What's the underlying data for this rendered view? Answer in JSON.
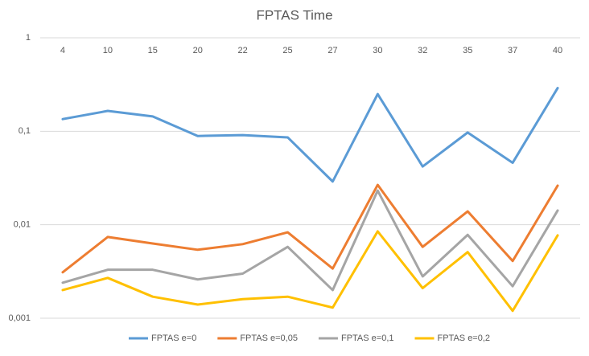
{
  "chart_data": {
    "type": "line",
    "title": "FPTAS Time",
    "categories": [
      "4",
      "10",
      "15",
      "20",
      "22",
      "25",
      "27",
      "30",
      "32",
      "35",
      "37",
      "40"
    ],
    "series": [
      {
        "name": "FPTAS e=0",
        "color": "#5b9bd5",
        "values": [
          0.135,
          0.165,
          0.144,
          0.089,
          0.091,
          0.086,
          0.029,
          0.25,
          0.042,
          0.097,
          0.046,
          0.29
        ]
      },
      {
        "name": "FPTAS e=0,05",
        "color": "#ed7d31",
        "values": [
          0.0031,
          0.0074,
          0.0063,
          0.0054,
          0.0062,
          0.0083,
          0.0034,
          0.0267,
          0.0058,
          0.0139,
          0.0041,
          0.0262
        ]
      },
      {
        "name": "FPTAS e=0,1",
        "color": "#a5a5a5",
        "values": [
          0.0024,
          0.0033,
          0.0033,
          0.0026,
          0.003,
          0.0058,
          0.002,
          0.0232,
          0.0028,
          0.0078,
          0.0022,
          0.0142
        ]
      },
      {
        "name": "FPTAS e=0,2",
        "color": "#ffc000",
        "values": [
          0.002,
          0.0027,
          0.0017,
          0.0014,
          0.0016,
          0.0017,
          0.0013,
          0.0085,
          0.0021,
          0.0051,
          0.0012,
          0.0077
        ]
      }
    ],
    "ylim": [
      0.001,
      1
    ],
    "ylog": true,
    "yticks": [
      {
        "value": 0.001,
        "label": "0,001"
      },
      {
        "value": 0.01,
        "label": "0,01"
      },
      {
        "value": 0.1,
        "label": "0,1"
      },
      1
    ],
    "grid": true,
    "legend": "bottom"
  }
}
